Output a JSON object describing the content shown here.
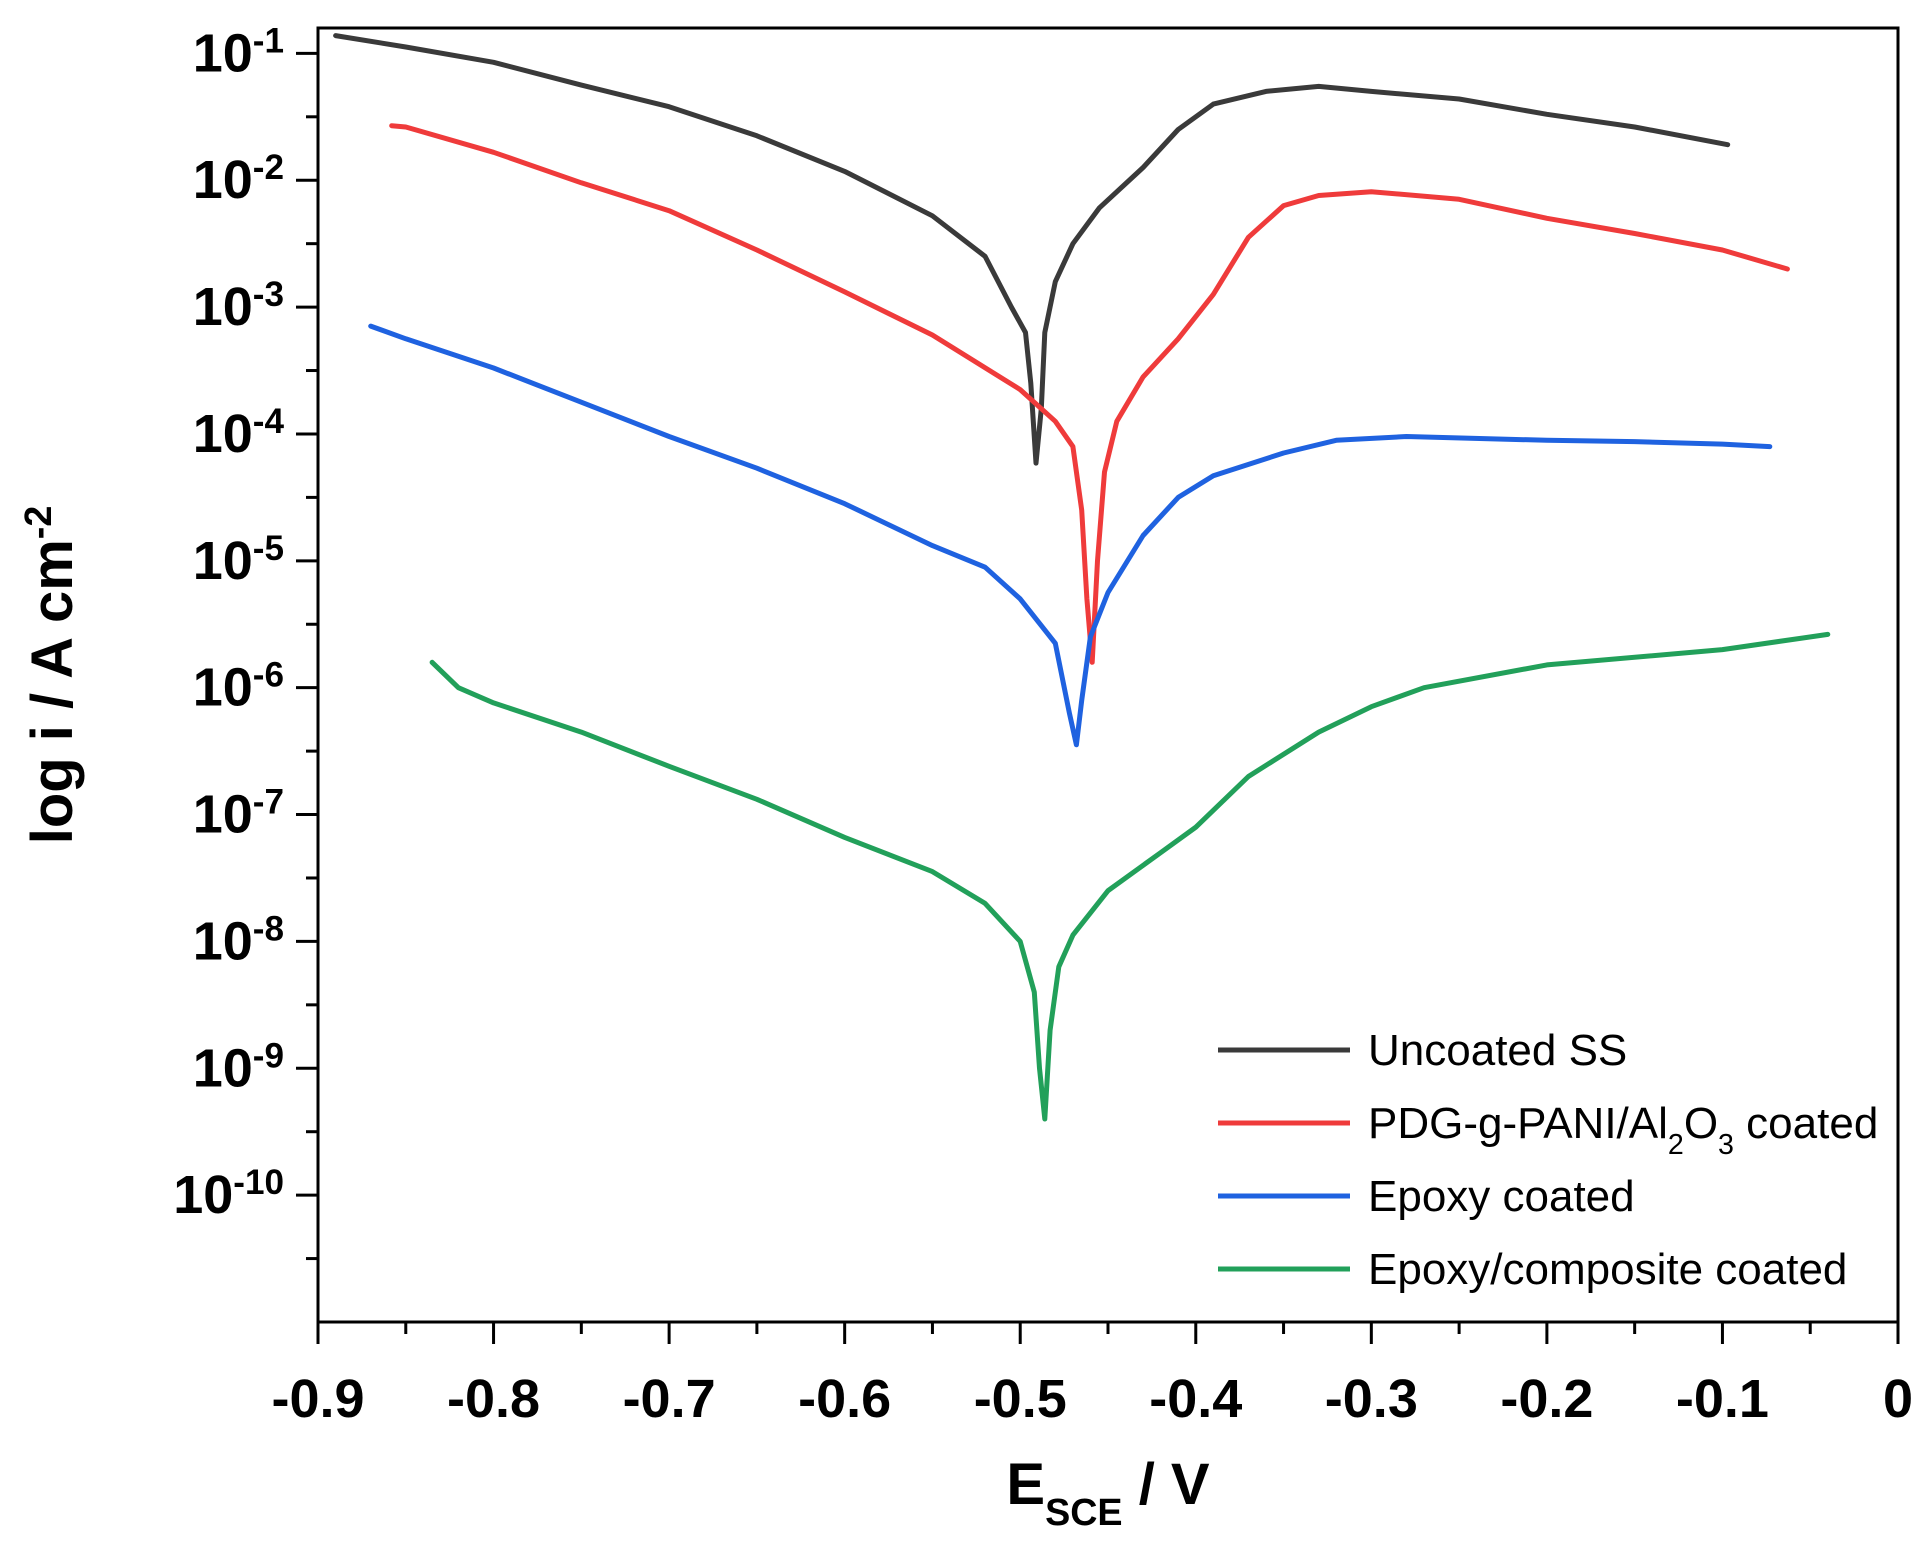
{
  "chart_data": {
    "type": "line",
    "title": "",
    "xlabel": {
      "main": "E",
      "sub": "SCE",
      "rest": " / V"
    },
    "ylabel": {
      "main": "log i / A cm",
      "sup": "-2"
    },
    "x_range": [
      -0.9,
      0.0
    ],
    "y_range_log10": [
      -11,
      -0.8
    ],
    "x_ticks": [
      {
        "value": -0.9,
        "label": "-0.9"
      },
      {
        "value": -0.8,
        "label": "-0.8"
      },
      {
        "value": -0.7,
        "label": "-0.7"
      },
      {
        "value": -0.6,
        "label": "-0.6"
      },
      {
        "value": -0.5,
        "label": "-0.5"
      },
      {
        "value": -0.4,
        "label": "-0.4"
      },
      {
        "value": -0.3,
        "label": "-0.3"
      },
      {
        "value": -0.2,
        "label": "-0.2"
      },
      {
        "value": -0.1,
        "label": "-0.1"
      },
      {
        "value": 0.0,
        "label": "0"
      }
    ],
    "y_ticks": [
      {
        "exp": -1,
        "base": "10",
        "sup": "-1"
      },
      {
        "exp": -2,
        "base": "10",
        "sup": "-2"
      },
      {
        "exp": -3,
        "base": "10",
        "sup": "-3"
      },
      {
        "exp": -4,
        "base": "10",
        "sup": "-4"
      },
      {
        "exp": -5,
        "base": "10",
        "sup": "-5"
      },
      {
        "exp": -6,
        "base": "10",
        "sup": "-6"
      },
      {
        "exp": -7,
        "base": "10",
        "sup": "-7"
      },
      {
        "exp": -8,
        "base": "10",
        "sup": "-8"
      },
      {
        "exp": -9,
        "base": "10",
        "sup": "-9"
      },
      {
        "exp": -10,
        "base": "10",
        "sup": "-10"
      }
    ],
    "legend_position": "bottom-right",
    "series": [
      {
        "name": "Uncoated SS",
        "legend": {
          "parts": [
            {
              "t": "Uncoated SS"
            }
          ]
        },
        "color": "#3a3a3a",
        "points": [
          [
            -0.89,
            -0.86
          ],
          [
            -0.85,
            -0.95
          ],
          [
            -0.8,
            -1.07
          ],
          [
            -0.75,
            -1.25
          ],
          [
            -0.7,
            -1.42
          ],
          [
            -0.65,
            -1.65
          ],
          [
            -0.6,
            -1.93
          ],
          [
            -0.55,
            -2.28
          ],
          [
            -0.52,
            -2.6
          ],
          [
            -0.505,
            -3.0
          ],
          [
            -0.497,
            -3.2
          ],
          [
            -0.494,
            -3.6
          ],
          [
            -0.491,
            -4.23
          ],
          [
            -0.488,
            -3.8
          ],
          [
            -0.486,
            -3.2
          ],
          [
            -0.48,
            -2.8
          ],
          [
            -0.47,
            -2.5
          ],
          [
            -0.455,
            -2.22
          ],
          [
            -0.43,
            -1.9
          ],
          [
            -0.41,
            -1.6
          ],
          [
            -0.39,
            -1.4
          ],
          [
            -0.36,
            -1.3
          ],
          [
            -0.33,
            -1.26
          ],
          [
            -0.3,
            -1.3
          ],
          [
            -0.25,
            -1.36
          ],
          [
            -0.2,
            -1.48
          ],
          [
            -0.15,
            -1.58
          ],
          [
            -0.097,
            -1.72
          ]
        ]
      },
      {
        "name": "PDG-g-PANI/Al2O3 coated",
        "legend": {
          "parts": [
            {
              "t": "PDG-g-PANI/Al"
            },
            {
              "t": "2",
              "s": "sub"
            },
            {
              "t": "O"
            },
            {
              "t": "3",
              "s": "sub"
            },
            {
              "t": " coated"
            }
          ]
        },
        "color": "#ef3b3b",
        "points": [
          [
            -0.858,
            -1.57
          ],
          [
            -0.85,
            -1.58
          ],
          [
            -0.8,
            -1.78
          ],
          [
            -0.75,
            -2.02
          ],
          [
            -0.7,
            -2.24
          ],
          [
            -0.65,
            -2.55
          ],
          [
            -0.6,
            -2.88
          ],
          [
            -0.55,
            -3.22
          ],
          [
            -0.5,
            -3.65
          ],
          [
            -0.48,
            -3.9
          ],
          [
            -0.47,
            -4.1
          ],
          [
            -0.465,
            -4.6
          ],
          [
            -0.462,
            -5.3
          ],
          [
            -0.459,
            -5.8
          ],
          [
            -0.456,
            -5.0
          ],
          [
            -0.452,
            -4.3
          ],
          [
            -0.445,
            -3.9
          ],
          [
            -0.43,
            -3.55
          ],
          [
            -0.41,
            -3.25
          ],
          [
            -0.39,
            -2.9
          ],
          [
            -0.37,
            -2.45
          ],
          [
            -0.35,
            -2.2
          ],
          [
            -0.33,
            -2.12
          ],
          [
            -0.3,
            -2.09
          ],
          [
            -0.25,
            -2.15
          ],
          [
            -0.2,
            -2.3
          ],
          [
            -0.15,
            -2.42
          ],
          [
            -0.1,
            -2.55
          ],
          [
            -0.063,
            -2.7
          ]
        ]
      },
      {
        "name": "Epoxy coated",
        "legend": {
          "parts": [
            {
              "t": "Epoxy coated"
            }
          ]
        },
        "color": "#1f62e0",
        "points": [
          [
            -0.87,
            -3.15
          ],
          [
            -0.85,
            -3.25
          ],
          [
            -0.8,
            -3.48
          ],
          [
            -0.75,
            -3.75
          ],
          [
            -0.7,
            -4.02
          ],
          [
            -0.65,
            -4.27
          ],
          [
            -0.6,
            -4.55
          ],
          [
            -0.55,
            -4.88
          ],
          [
            -0.52,
            -5.05
          ],
          [
            -0.5,
            -5.3
          ],
          [
            -0.48,
            -5.65
          ],
          [
            -0.472,
            -6.2
          ],
          [
            -0.468,
            -6.45
          ],
          [
            -0.465,
            -6.1
          ],
          [
            -0.46,
            -5.6
          ],
          [
            -0.45,
            -5.25
          ],
          [
            -0.43,
            -4.8
          ],
          [
            -0.41,
            -4.5
          ],
          [
            -0.39,
            -4.33
          ],
          [
            -0.35,
            -4.15
          ],
          [
            -0.32,
            -4.05
          ],
          [
            -0.28,
            -4.02
          ],
          [
            -0.2,
            -4.05
          ],
          [
            -0.15,
            -4.06
          ],
          [
            -0.1,
            -4.08
          ],
          [
            -0.073,
            -4.1
          ]
        ]
      },
      {
        "name": "Epoxy/composite coated",
        "legend": {
          "parts": [
            {
              "t": "Epoxy/composite coated"
            }
          ]
        },
        "color": "#22a05a",
        "points": [
          [
            -0.835,
            -5.8
          ],
          [
            -0.82,
            -6.0
          ],
          [
            -0.8,
            -6.12
          ],
          [
            -0.75,
            -6.35
          ],
          [
            -0.7,
            -6.62
          ],
          [
            -0.65,
            -6.88
          ],
          [
            -0.6,
            -7.18
          ],
          [
            -0.55,
            -7.45
          ],
          [
            -0.52,
            -7.7
          ],
          [
            -0.5,
            -8.0
          ],
          [
            -0.492,
            -8.4
          ],
          [
            -0.489,
            -9.0
          ],
          [
            -0.486,
            -9.4
          ],
          [
            -0.483,
            -8.7
          ],
          [
            -0.478,
            -8.2
          ],
          [
            -0.47,
            -7.95
          ],
          [
            -0.45,
            -7.6
          ],
          [
            -0.42,
            -7.3
          ],
          [
            -0.4,
            -7.1
          ],
          [
            -0.37,
            -6.7
          ],
          [
            -0.33,
            -6.35
          ],
          [
            -0.3,
            -6.15
          ],
          [
            -0.27,
            -6.0
          ],
          [
            -0.2,
            -5.82
          ],
          [
            -0.1,
            -5.7
          ],
          [
            -0.04,
            -5.58
          ]
        ]
      }
    ]
  }
}
